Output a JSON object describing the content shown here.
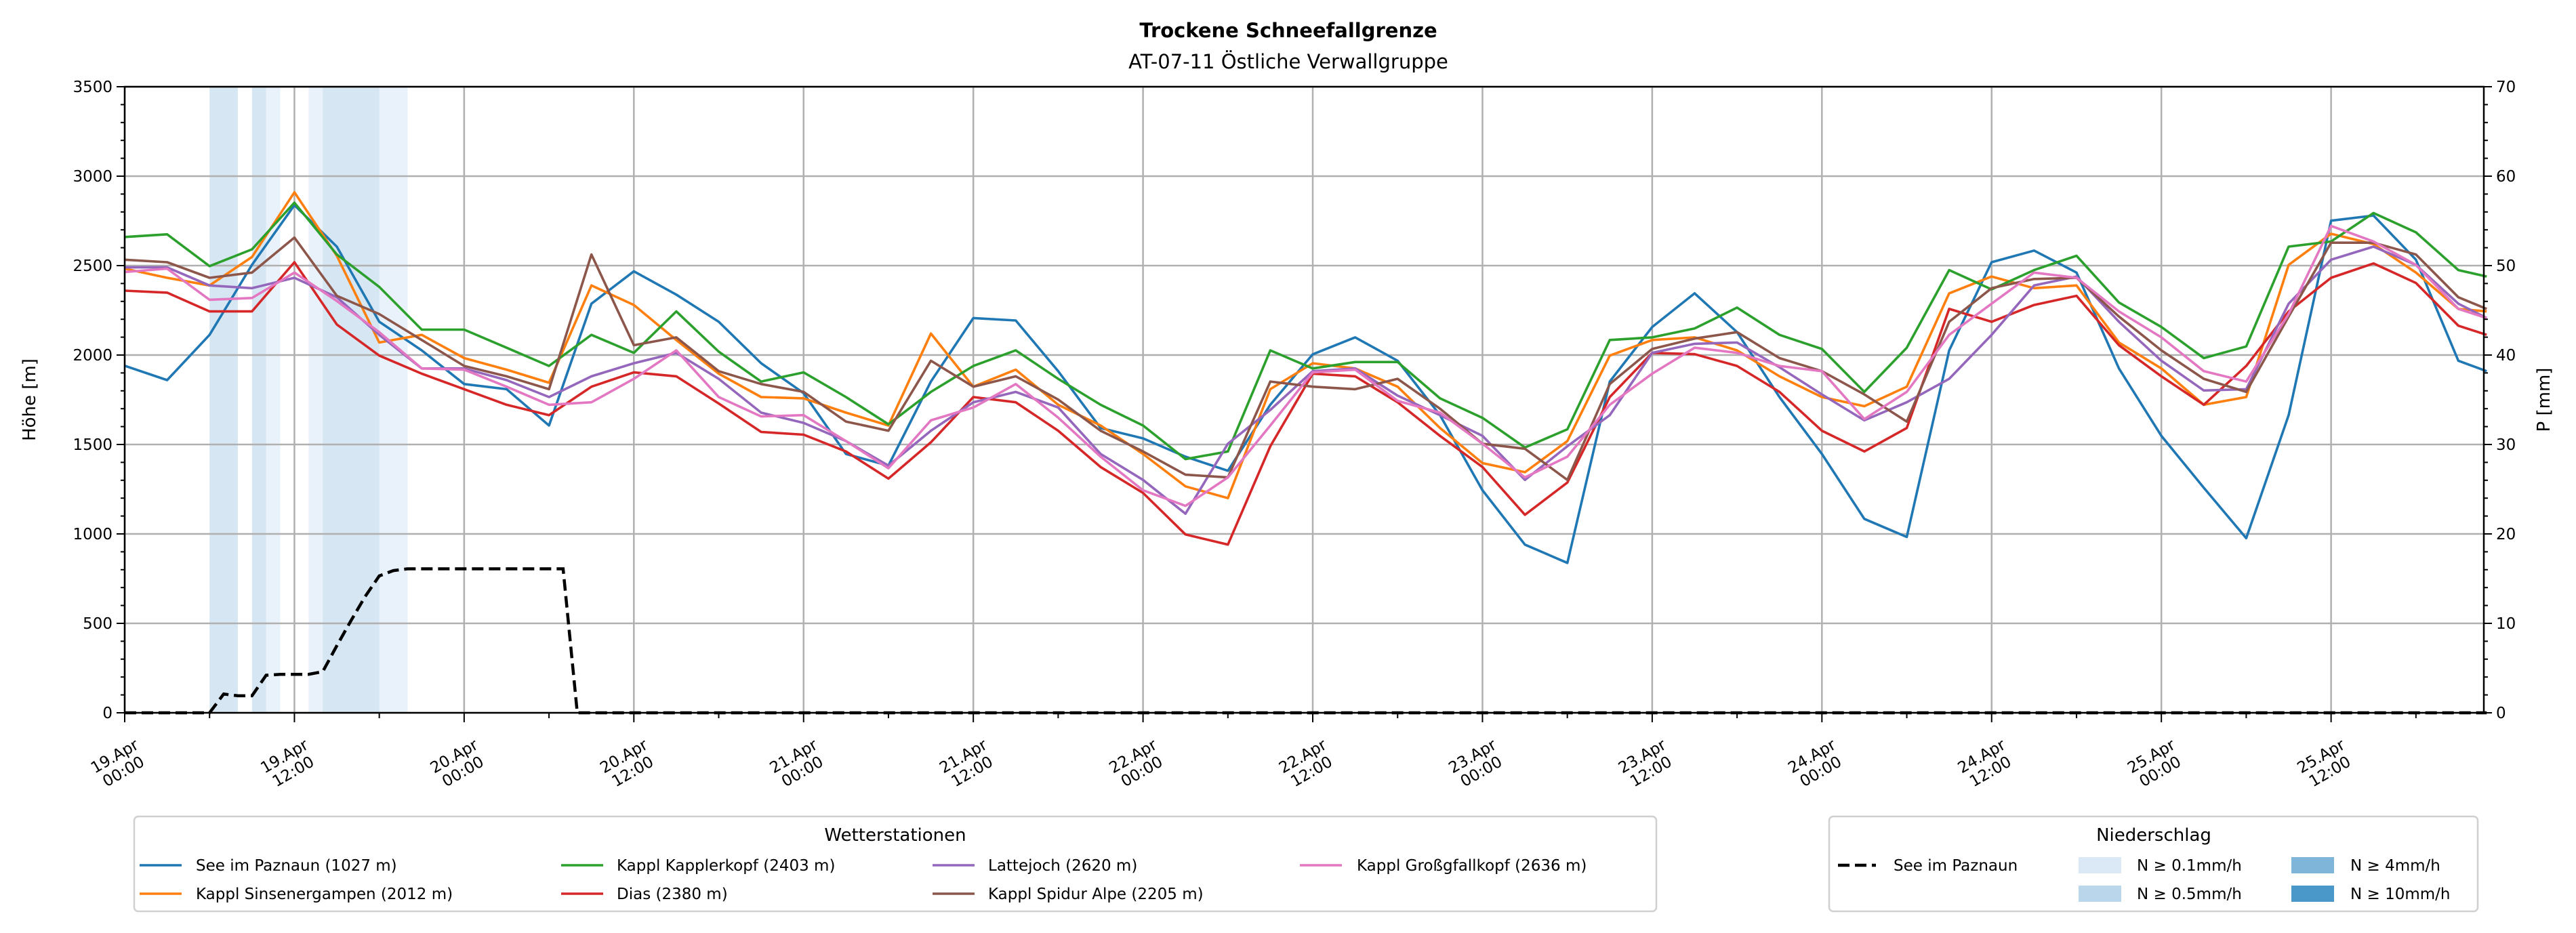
{
  "title": "Trockene Schneefallgrenze",
  "subtitle": "AT-07-11 Östliche Verwallgruppe",
  "chart_data": {
    "type": "line",
    "title": "Trockene Schneefallgrenze",
    "subtitle": "AT-07-11 Östliche Verwallgruppe",
    "xlabel": "",
    "ylabel": "Höhe [m]",
    "y2label": "P [mm]",
    "x_unit": "hours since 19.Apr 00:00",
    "xlim": [
      0,
      166.8
    ],
    "ylim": [
      0,
      3500
    ],
    "y2lim": [
      0,
      70
    ],
    "grid": true,
    "y_ticks": [
      0,
      500,
      1000,
      1500,
      2000,
      2500,
      3000,
      3500
    ],
    "y2_ticks": [
      0,
      10,
      20,
      30,
      40,
      50,
      60,
      70
    ],
    "x_ticks": [
      {
        "h": 0,
        "date": "19.Apr",
        "time": "00:00"
      },
      {
        "h": 12,
        "date": "19.Apr",
        "time": "12:00"
      },
      {
        "h": 24,
        "date": "20.Apr",
        "time": "00:00"
      },
      {
        "h": 36,
        "date": "20.Apr",
        "time": "12:00"
      },
      {
        "h": 48,
        "date": "21.Apr",
        "time": "00:00"
      },
      {
        "h": 60,
        "date": "21.Apr",
        "time": "12:00"
      },
      {
        "h": 72,
        "date": "22.Apr",
        "time": "00:00"
      },
      {
        "h": 84,
        "date": "22.Apr",
        "time": "12:00"
      },
      {
        "h": 96,
        "date": "23.Apr",
        "time": "00:00"
      },
      {
        "h": 108,
        "date": "23.Apr",
        "time": "12:00"
      },
      {
        "h": 120,
        "date": "24.Apr",
        "time": "00:00"
      },
      {
        "h": 132,
        "date": "24.Apr",
        "time": "12:00"
      },
      {
        "h": 144,
        "date": "25.Apr",
        "time": "00:00"
      },
      {
        "h": 156,
        "date": "25.Apr",
        "time": "12:00"
      }
    ],
    "x": [
      0,
      3,
      6,
      9,
      12,
      15,
      18,
      21,
      24,
      27,
      30,
      33,
      36,
      39,
      42,
      45,
      48,
      51,
      54,
      57,
      60,
      63,
      66,
      69,
      72,
      75,
      78,
      81,
      84,
      87,
      90,
      93,
      96,
      99,
      102,
      105,
      108,
      111,
      114,
      117,
      120,
      123,
      126,
      129,
      132,
      135,
      138,
      141,
      144,
      147,
      150,
      153,
      156,
      159,
      162,
      165,
      167
    ],
    "series": [
      {
        "name": "See im Paznaun (1027 m)",
        "color": "#1f77b4",
        "values": [
          1940,
          1860,
          2113,
          2504,
          2838,
          2606,
          2186,
          2026,
          1838,
          1809,
          1606,
          2287,
          2468,
          2338,
          2186,
          1954,
          1787,
          1447,
          1382,
          1852,
          2207,
          2193,
          1910,
          1592,
          1534,
          1432,
          1353,
          1722,
          2004,
          2099,
          1968,
          1664,
          1244,
          940,
          838,
          1852,
          2157,
          2345,
          2128,
          1765,
          1447,
          1084,
          983,
          2026,
          2519,
          2584,
          2461,
          1925,
          1548,
          1258,
          976,
          1664,
          2751,
          2780,
          2533,
          1968,
          1910
        ]
      },
      {
        "name": "Kappl Sinsenergampen (2012 m)",
        "color": "#ff7f0e",
        "values": [
          2483,
          2432,
          2389,
          2548,
          2910,
          2555,
          2070,
          2113,
          1983,
          1918,
          1845,
          2389,
          2280,
          2084,
          1896,
          1765,
          1758,
          1678,
          1606,
          2120,
          1823,
          1918,
          1722,
          1606,
          1447,
          1266,
          1200,
          1809,
          1954,
          1925,
          1823,
          1592,
          1396,
          1345,
          1519,
          1997,
          2084,
          2099,
          2026,
          1881,
          1765,
          1714,
          1823,
          2345,
          2439,
          2374,
          2389,
          2070,
          1925,
          1722,
          1765,
          2504,
          2678,
          2620,
          2461,
          2258,
          2244
        ]
      },
      {
        "name": "Kappl Kapplerkopf (2403 m)",
        "color": "#2ca02c",
        "values": [
          2660,
          2675,
          2497,
          2591,
          2852,
          2562,
          2381,
          2142,
          2142,
          2041,
          1939,
          2113,
          2012,
          2244,
          2019,
          1852,
          1903,
          1765,
          1613,
          1794,
          1939,
          2026,
          1867,
          1722,
          1606,
          1418,
          1461,
          2026,
          1925,
          1961,
          1961,
          1758,
          1649,
          1483,
          1585,
          2084,
          2099,
          2149,
          2265,
          2113,
          2034,
          1794,
          2041,
          2475,
          2367,
          2475,
          2555,
          2294,
          2157,
          1983,
          2048,
          2606,
          2635,
          2794,
          2686,
          2475,
          2439
        ]
      },
      {
        "name": "Dias (2380 m)",
        "color": "#d62728",
        "values": [
          2360,
          2349,
          2244,
          2244,
          2519,
          2171,
          1997,
          1896,
          1809,
          1722,
          1664,
          1823,
          1903,
          1881,
          1729,
          1570,
          1555,
          1461,
          1309,
          1512,
          1765,
          1736,
          1577,
          1374,
          1229,
          997,
          940,
          1490,
          1896,
          1881,
          1736,
          1548,
          1374,
          1107,
          1287,
          1765,
          2012,
          2005,
          1939,
          1794,
          1577,
          1461,
          1592,
          2258,
          2186,
          2280,
          2331,
          2055,
          1881,
          1722,
          1939,
          2244,
          2432,
          2512,
          2403,
          2164,
          2113
        ]
      },
      {
        "name": "Lattejoch (2620 m)",
        "color": "#9467bd",
        "values": [
          2490,
          2490,
          2389,
          2374,
          2432,
          2323,
          2113,
          1925,
          1925,
          1860,
          1765,
          1881,
          1954,
          2012,
          1867,
          1678,
          1621,
          1519,
          1382,
          1577,
          1736,
          1794,
          1707,
          1447,
          1302,
          1113,
          1504,
          1693,
          1910,
          1925,
          1773,
          1664,
          1548,
          1302,
          1490,
          1664,
          2012,
          2063,
          2070,
          1932,
          1780,
          1635,
          1736,
          1867,
          2113,
          2389,
          2439,
          2186,
          1968,
          1802,
          1809,
          2287,
          2533,
          2606,
          2504,
          2287,
          2207
        ]
      },
      {
        "name": "Kappl Spidur Alpe (2205 m)",
        "color": "#8c564b",
        "values": [
          2533,
          2519,
          2432,
          2461,
          2657,
          2331,
          2229,
          2084,
          1939,
          1881,
          1809,
          2562,
          2055,
          2099,
          1910,
          1838,
          1794,
          1628,
          1577,
          1968,
          1823,
          1881,
          1751,
          1577,
          1461,
          1331,
          1316,
          1852,
          1823,
          1809,
          1867,
          1700,
          1504,
          1476,
          1302,
          1838,
          2034,
          2092,
          2128,
          1983,
          1910,
          1780,
          1628,
          2186,
          2374,
          2425,
          2432,
          2215,
          2026,
          1867,
          1794,
          2215,
          2628,
          2628,
          2562,
          2323,
          2258
        ]
      },
      {
        "name": "Kappl Großgfallkopf (2636 m)",
        "color": "#e377c2",
        "values": [
          2464,
          2483,
          2309,
          2319,
          2461,
          2302,
          2128,
          1925,
          1918,
          1823,
          1722,
          1736,
          1867,
          2026,
          1765,
          1657,
          1664,
          1519,
          1367,
          1635,
          1707,
          1838,
          1650,
          1432,
          1244,
          1157,
          1316,
          1606,
          1903,
          1918,
          1744,
          1678,
          1504,
          1316,
          1432,
          1722,
          1896,
          2041,
          2012,
          1939,
          1910,
          1642,
          1794,
          2113,
          2287,
          2461,
          2432,
          2244,
          2099,
          1910,
          1852,
          2229,
          2722,
          2635,
          2504,
          2258,
          2207
        ]
      }
    ],
    "precip_series": {
      "name": "See im Paznaun",
      "axis": "right",
      "style": "dashed",
      "color": "#000000",
      "points": [
        [
          0,
          0
        ],
        [
          6,
          0
        ],
        [
          7,
          2.1
        ],
        [
          8,
          1.9
        ],
        [
          9,
          1.9
        ],
        [
          10,
          4.2
        ],
        [
          11,
          4.3
        ],
        [
          12,
          4.3
        ],
        [
          13,
          4.3
        ],
        [
          14,
          4.6
        ],
        [
          15,
          7.5
        ],
        [
          16,
          10.3
        ],
        [
          17,
          13.0
        ],
        [
          18,
          15.3
        ],
        [
          19,
          15.9
        ],
        [
          20,
          16.1
        ],
        [
          31,
          16.1
        ],
        [
          32,
          0
        ],
        [
          167,
          0
        ]
      ]
    },
    "precip_bands": [
      {
        "start_h": 6,
        "end_h": 8,
        "class": 1
      },
      {
        "start_h": 9,
        "end_h": 10,
        "class": 1
      },
      {
        "start_h": 10,
        "end_h": 11,
        "class": 0
      },
      {
        "start_h": 13,
        "end_h": 14,
        "class": 0
      },
      {
        "start_h": 14,
        "end_h": 18,
        "class": 1
      },
      {
        "start_h": 18,
        "end_h": 20,
        "class": 0
      }
    ],
    "precip_classes": [
      {
        "label": "N ≥ 0.1mm/h",
        "color": "#dbe9f6"
      },
      {
        "label": "N ≥ 0.5mm/h",
        "color": "#bad6ea"
      },
      {
        "label": "N ≥ 4mm/h",
        "color": "#7fb5d9"
      },
      {
        "label": "N ≥ 10mm/h",
        "color": "#4a98c9"
      }
    ],
    "legend": {
      "stations_title": "Wetterstationen",
      "stations_placement": "bottom-left",
      "precip_title": "Niederschlag",
      "precip_placement": "bottom-right",
      "precip_line_label": "See im Paznaun"
    }
  }
}
